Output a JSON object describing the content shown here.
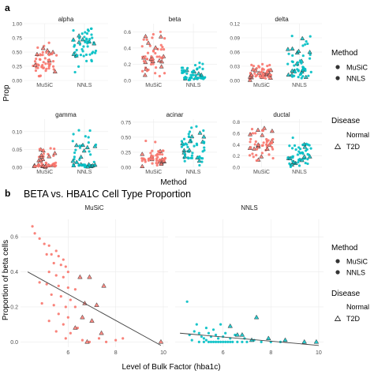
{
  "panel_a": {
    "tag": "a",
    "xlabel": "Method",
    "ylabel": "Prop",
    "categories": [
      "MuSiC",
      "NNLS"
    ]
  },
  "panel_b": {
    "tag": "b",
    "title": "BETA vs. HBA1C Cell Type Proportion",
    "xlabel": "Level of Bulk Factor (hba1c)",
    "ylabel": "Proportion of beta cells"
  },
  "legend": {
    "method_title": "Method",
    "method_items": [
      "MuSiC",
      "NNLS"
    ],
    "disease_title": "Disease",
    "disease_items": [
      "Normal",
      "T2D"
    ]
  },
  "colors": {
    "music": "#F8766D",
    "nnls": "#00BFC4",
    "panel_bg": "#ffffff",
    "grid": "#ebebeb",
    "regression_line": "#444444"
  },
  "chart_data": [
    {
      "type": "scatter",
      "subtype": "jittered strip plot",
      "facets": [
        {
          "name": "alpha",
          "ylim": [
            0.0,
            1.0
          ],
          "yticks": [
            0.0,
            0.25,
            0.5,
            0.75,
            1.0
          ],
          "yticklabels": [
            "0.00",
            "0.25",
            "0.50",
            "0.75",
            "1.00"
          ],
          "music": {
            "range": [
              0.05,
              0.7
            ],
            "center": 0.3
          },
          "nnls": {
            "range": [
              0.1,
              0.96
            ],
            "center": 0.6
          }
        },
        {
          "name": "beta",
          "ylim": [
            0.0,
            0.7
          ],
          "yticks": [
            0.0,
            0.2,
            0.4,
            0.6
          ],
          "yticklabels": [
            "0.0",
            "0.2",
            "0.4",
            "0.6"
          ],
          "music": {
            "range": [
              0.02,
              0.67
            ],
            "center": 0.3
          },
          "nnls": {
            "range": [
              0.0,
              0.23
            ],
            "center": 0.04
          }
        },
        {
          "name": "delta",
          "ylim": [
            0.0,
            0.12
          ],
          "yticks": [
            0.0,
            0.03,
            0.06,
            0.09,
            0.12
          ],
          "yticklabels": [
            "0.00",
            "0.03",
            "0.06",
            "0.09",
            "0.12"
          ],
          "music": {
            "range": [
              0.0,
              0.045
            ],
            "center": 0.015
          },
          "nnls": {
            "range": [
              0.0,
              0.115
            ],
            "center": 0.025
          }
        },
        {
          "name": "gamma",
          "ylim": [
            0.0,
            0.135
          ],
          "yticks": [
            0.0,
            0.05,
            0.1
          ],
          "yticklabels": [
            "0.00",
            "0.05",
            "0.10"
          ],
          "music": {
            "range": [
              0.0,
              0.075
            ],
            "center": 0.006
          },
          "nnls": {
            "range": [
              0.0,
              0.135
            ],
            "center": 0.008
          }
        },
        {
          "name": "acinar",
          "ylim": [
            0.0,
            0.8
          ],
          "yticks": [
            0.0,
            0.25,
            0.5,
            0.75
          ],
          "yticklabels": [
            "0.00",
            "0.25",
            "0.50",
            "0.75"
          ],
          "music": {
            "range": [
              0.0,
              0.45
            ],
            "center": 0.15
          },
          "nnls": {
            "range": [
              0.0,
              0.72
            ],
            "center": 0.3
          }
        },
        {
          "name": "ductal",
          "ylim": [
            0.0,
            0.85
          ],
          "yticks": [
            0.0,
            0.2,
            0.4,
            0.6,
            0.8
          ],
          "yticklabels": [
            "0.0",
            "0.2",
            "0.4",
            "0.6",
            "0.8"
          ],
          "music": {
            "range": [
              0.05,
              0.78
            ],
            "center": 0.4
          },
          "nnls": {
            "range": [
              0.0,
              0.62
            ],
            "center": 0.15
          }
        }
      ]
    },
    {
      "type": "scatter",
      "title": "BETA vs. HBA1C Cell Type Proportion",
      "xlabel": "Level of Bulk Factor (hba1c)",
      "ylabel": "Proportion of beta cells",
      "xlim": [
        4.0,
        10.2
      ],
      "ylim": [
        -0.03,
        0.7
      ],
      "xticks": [
        6,
        8,
        10
      ],
      "yticks": [
        0.0,
        0.2,
        0.4,
        0.6
      ],
      "yticklabels": [
        "0.0",
        "0.2",
        "0.4",
        "0.6"
      ],
      "facets": [
        {
          "name": "MuSiC",
          "regression": [
            [
              4.3,
              0.4
            ],
            [
              9.9,
              -0.02
            ]
          ],
          "normal": [
            [
              4.5,
              0.66
            ],
            [
              4.6,
              0.62
            ],
            [
              4.8,
              0.59
            ],
            [
              5.0,
              0.56
            ],
            [
              5.2,
              0.55
            ],
            [
              5.1,
              0.5
            ],
            [
              5.3,
              0.5
            ],
            [
              5.5,
              0.52
            ],
            [
              5.6,
              0.49
            ],
            [
              5.8,
              0.47
            ],
            [
              5.4,
              0.45
            ],
            [
              5.7,
              0.44
            ],
            [
              5.9,
              0.43
            ],
            [
              6.0,
              0.4
            ],
            [
              5.2,
              0.4
            ],
            [
              5.5,
              0.38
            ],
            [
              5.8,
              0.37
            ],
            [
              4.8,
              0.34
            ],
            [
              5.1,
              0.33
            ],
            [
              5.6,
              0.32
            ],
            [
              6.0,
              0.31
            ],
            [
              6.3,
              0.3
            ],
            [
              5.3,
              0.27
            ],
            [
              5.7,
              0.26
            ],
            [
              6.1,
              0.24
            ],
            [
              4.9,
              0.22
            ],
            [
              5.4,
              0.21
            ],
            [
              5.9,
              0.2
            ],
            [
              6.3,
              0.2
            ],
            [
              5.6,
              0.16
            ],
            [
              6.0,
              0.14
            ],
            [
              5.2,
              0.12
            ],
            [
              5.8,
              0.1
            ],
            [
              6.4,
              0.08
            ],
            [
              5.5,
              0.06
            ],
            [
              6.1,
              0.05
            ],
            [
              5.9,
              0.02
            ],
            [
              6.6,
              0.01
            ],
            [
              6.9,
              0.0
            ],
            [
              7.3,
              0.02
            ],
            [
              7.6,
              0.0
            ],
            [
              8.0,
              0.01
            ],
            [
              8.3,
              0.02
            ]
          ],
          "t2d": [
            [
              6.5,
              0.37
            ],
            [
              6.9,
              0.37
            ],
            [
              7.5,
              0.32
            ],
            [
              6.7,
              0.22
            ],
            [
              7.2,
              0.21
            ],
            [
              6.6,
              0.14
            ],
            [
              7.0,
              0.12
            ],
            [
              6.3,
              0.08
            ],
            [
              7.4,
              0.05
            ],
            [
              9.9,
              0.0
            ],
            [
              6.8,
              0.0
            ]
          ]
        },
        {
          "name": "NNLS",
          "regression": [
            [
              4.2,
              0.05
            ],
            [
              10.0,
              -0.02
            ]
          ],
          "normal": [
            [
              4.5,
              0.23
            ],
            [
              4.9,
              0.1
            ],
            [
              5.3,
              0.08
            ],
            [
              5.6,
              0.07
            ],
            [
              5.9,
              0.1
            ],
            [
              6.1,
              0.05
            ],
            [
              4.6,
              0.04
            ],
            [
              4.8,
              0.06
            ],
            [
              5.0,
              0.05
            ],
            [
              5.1,
              0.03
            ],
            [
              5.2,
              0.02
            ],
            [
              5.4,
              0.05
            ],
            [
              5.5,
              0.03
            ],
            [
              5.7,
              0.04
            ],
            [
              5.8,
              0.02
            ],
            [
              6.0,
              0.03
            ],
            [
              6.3,
              0.02
            ],
            [
              6.5,
              0.04
            ],
            [
              5.0,
              0.0
            ],
            [
              5.2,
              0.0
            ],
            [
              5.4,
              0.0
            ],
            [
              5.5,
              0.0
            ],
            [
              5.6,
              0.0
            ],
            [
              5.7,
              0.0
            ],
            [
              5.8,
              0.0
            ],
            [
              5.9,
              0.0
            ],
            [
              6.0,
              0.0
            ],
            [
              6.1,
              0.0
            ],
            [
              6.2,
              0.0
            ],
            [
              6.3,
              0.0
            ],
            [
              6.4,
              0.0
            ],
            [
              6.6,
              0.0
            ],
            [
              6.8,
              0.0
            ],
            [
              7.0,
              0.0
            ],
            [
              7.3,
              0.01
            ],
            [
              7.6,
              0.0
            ],
            [
              8.0,
              0.0
            ],
            [
              8.4,
              0.0
            ],
            [
              4.7,
              0.01
            ],
            [
              5.3,
              0.01
            ],
            [
              6.9,
              0.02
            ]
          ],
          "t2d": [
            [
              6.3,
              0.09
            ],
            [
              6.8,
              0.04
            ],
            [
              7.4,
              0.14
            ],
            [
              7.9,
              0.02
            ],
            [
              8.6,
              0.01
            ],
            [
              9.4,
              0.0
            ],
            [
              9.9,
              0.0
            ],
            [
              6.6,
              0.04
            ],
            [
              7.2,
              0.01
            ]
          ]
        }
      ]
    }
  ]
}
